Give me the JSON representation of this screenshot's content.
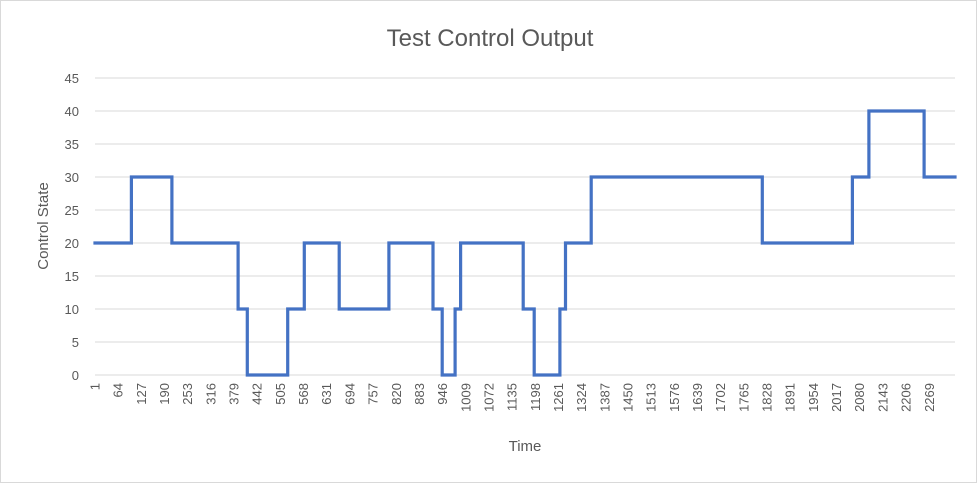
{
  "chart_data": {
    "type": "line",
    "title": "Test Control Output",
    "xlabel": "Time",
    "ylabel": "Control State",
    "ylim": [
      0,
      45
    ],
    "yticks": [
      0,
      5,
      10,
      15,
      20,
      25,
      30,
      35,
      40,
      45
    ],
    "xticks": [
      "1",
      "64",
      "127",
      "190",
      "253",
      "316",
      "379",
      "442",
      "505",
      "568",
      "631",
      "694",
      "757",
      "820",
      "883",
      "946",
      "1009",
      "1072",
      "1135",
      "1198",
      "1261",
      "1324",
      "1387",
      "1450",
      "1513",
      "1576",
      "1639",
      "1702",
      "1765",
      "1828",
      "1891",
      "1954",
      "2017",
      "2080",
      "2143",
      "2206",
      "2269"
    ],
    "xlim": [
      1,
      2339
    ],
    "grid": "horizontal",
    "legend": "none",
    "line_color": "#4472c4",
    "series": [
      {
        "step_points": [
          [
            1,
            20
          ],
          [
            100,
            20
          ],
          [
            100,
            30
          ],
          [
            210,
            30
          ],
          [
            210,
            20
          ],
          [
            390,
            20
          ],
          [
            390,
            10
          ],
          [
            415,
            10
          ],
          [
            415,
            0
          ],
          [
            525,
            0
          ],
          [
            525,
            10
          ],
          [
            570,
            10
          ],
          [
            570,
            20
          ],
          [
            665,
            20
          ],
          [
            665,
            10
          ],
          [
            800,
            10
          ],
          [
            800,
            20
          ],
          [
            920,
            20
          ],
          [
            920,
            10
          ],
          [
            945,
            10
          ],
          [
            945,
            0
          ],
          [
            980,
            0
          ],
          [
            980,
            10
          ],
          [
            995,
            10
          ],
          [
            995,
            20
          ],
          [
            1165,
            20
          ],
          [
            1165,
            10
          ],
          [
            1195,
            10
          ],
          [
            1195,
            0
          ],
          [
            1265,
            0
          ],
          [
            1265,
            10
          ],
          [
            1280,
            10
          ],
          [
            1280,
            20
          ],
          [
            1350,
            20
          ],
          [
            1350,
            30
          ],
          [
            1815,
            30
          ],
          [
            1815,
            20
          ],
          [
            2060,
            20
          ],
          [
            2060,
            30
          ],
          [
            2105,
            30
          ],
          [
            2105,
            40
          ],
          [
            2255,
            40
          ],
          [
            2255,
            30
          ],
          [
            2339,
            30
          ]
        ]
      }
    ]
  }
}
